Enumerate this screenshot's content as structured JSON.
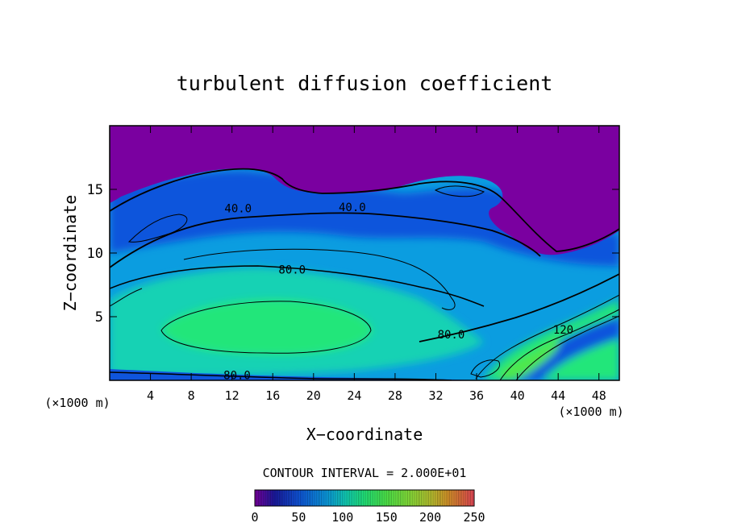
{
  "chart_data": {
    "type": "heatmap",
    "title": "turbulent diffusion coefficient",
    "xlabel": "X−coordinate",
    "ylabel": "Z−coordinate",
    "x_unit_left": "(×1000 m)",
    "x_unit_right": "(×1000 m)",
    "xlim": [
      0,
      50
    ],
    "ylim": [
      0,
      20
    ],
    "x_ticks": [
      4,
      8,
      12,
      16,
      20,
      24,
      28,
      32,
      36,
      40,
      44,
      48
    ],
    "y_ticks": [
      5,
      10,
      15
    ],
    "contour_interval_text": "CONTOUR INTERVAL = 2.000E+01",
    "colorbar": {
      "min": 0,
      "max": 250,
      "ticks": [
        0,
        50,
        100,
        150,
        200,
        250
      ],
      "colors": [
        "#7a00a0",
        "#1a1aa0",
        "#0f55dc",
        "#0b9de0",
        "#12d2b4",
        "#22e67a",
        "#4fe84a",
        "#86e23b",
        "#b8c430",
        "#d8962a",
        "#e06640",
        "#e8495a"
      ]
    },
    "contour_labels": [
      {
        "text": "40.0",
        "x": 12.6,
        "y": 13.5
      },
      {
        "text": "40.0",
        "x": 23.8,
        "y": 13.6
      },
      {
        "text": "80.0",
        "x": 17.9,
        "y": 8.7
      },
      {
        "text": "80.0",
        "x": 33.5,
        "y": 3.6
      },
      {
        "text": "80.0",
        "x": 12.5,
        "y": 0.4
      },
      {
        "text": "120",
        "x": 44.5,
        "y": 4.0
      }
    ]
  }
}
